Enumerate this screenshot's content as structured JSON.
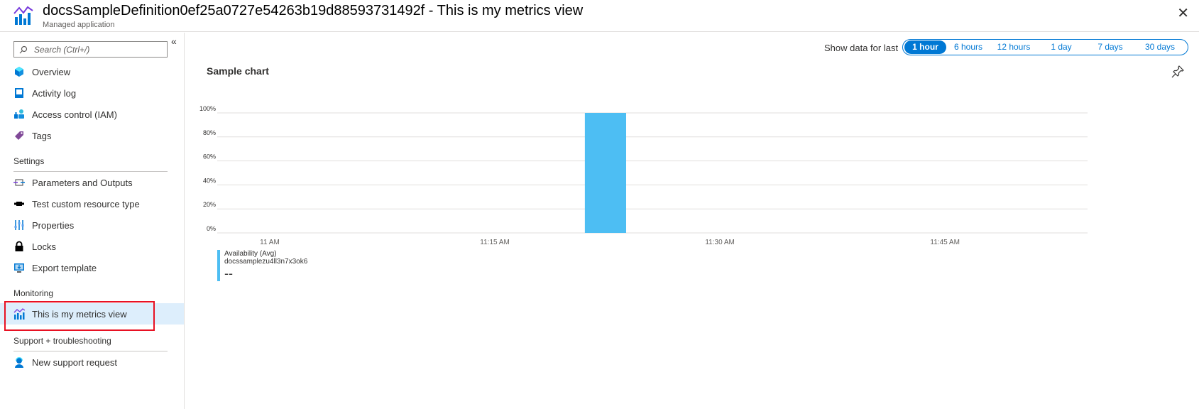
{
  "header": {
    "title": "docsSampleDefinition0ef25a0727e54263b19d88593731492f - This is my metrics view",
    "subtitle": "Managed application",
    "close": "✕"
  },
  "sidebar": {
    "collapse": "«",
    "search_placeholder": "Search (Ctrl+/)",
    "items_top": [
      {
        "label": "Overview",
        "icon": "overview-icon"
      },
      {
        "label": "Activity log",
        "icon": "activity-log-icon"
      },
      {
        "label": "Access control (IAM)",
        "icon": "iam-icon"
      },
      {
        "label": "Tags",
        "icon": "tag-icon"
      }
    ],
    "settings_title": "Settings",
    "settings_items": [
      {
        "label": "Parameters and Outputs",
        "icon": "parameters-icon"
      },
      {
        "label": "Test custom resource type",
        "icon": "custom-resource-icon"
      },
      {
        "label": "Properties",
        "icon": "properties-icon"
      },
      {
        "label": "Locks",
        "icon": "lock-icon"
      },
      {
        "label": "Export template",
        "icon": "export-template-icon"
      }
    ],
    "monitoring_title": "Monitoring",
    "monitoring_items": [
      {
        "label": "This is my metrics view",
        "icon": "metrics-icon",
        "active": true
      }
    ],
    "support_title": "Support + troubleshooting",
    "support_items": [
      {
        "label": "New support request",
        "icon": "support-icon"
      }
    ]
  },
  "time_range": {
    "label": "Show data for last",
    "options": [
      "1 hour",
      "6 hours",
      "12 hours",
      "1 day",
      "7 days",
      "30 days"
    ],
    "selected": "1 hour"
  },
  "chart_data": {
    "type": "bar",
    "title": "Sample chart",
    "xlabel": "",
    "ylabel": "",
    "y_ticks": [
      "100%",
      "80%",
      "60%",
      "40%",
      "20%",
      "0%"
    ],
    "ylim": [
      0,
      100
    ],
    "x_tick_labels": [
      "11 AM",
      "11:15 AM",
      "11:30 AM",
      "11:45 AM"
    ],
    "x_tick_minutes": [
      0,
      15,
      30,
      45
    ],
    "x_range_minutes": [
      -3.5,
      54.5
    ],
    "bars": [
      {
        "start_minute": 21,
        "end_minute": 23.75,
        "value": 100
      }
    ],
    "bar_color": "#4dbef3",
    "grid": true,
    "legend": {
      "metric": "Availability (Avg)",
      "resource": "docssamplezu4ll3n7x3ok6",
      "value": "--",
      "placement": "bottom-left"
    }
  }
}
